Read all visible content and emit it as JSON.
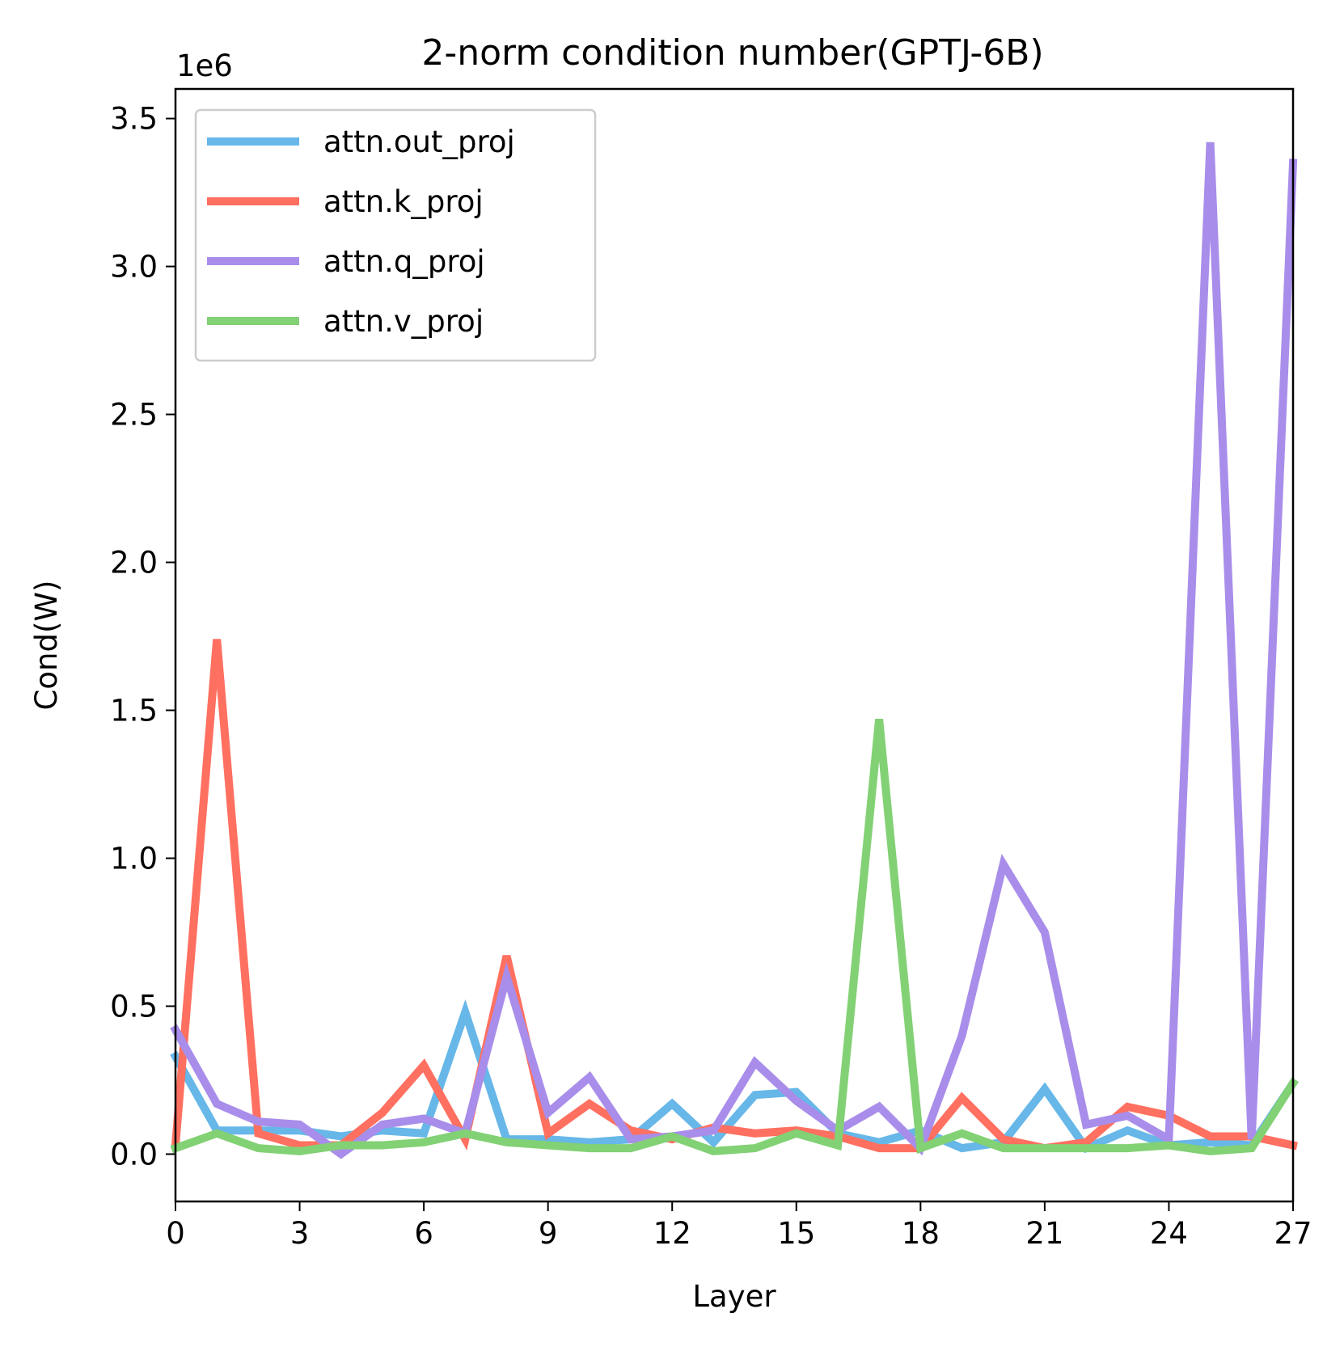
{
  "chart_data": {
    "type": "line",
    "title": "2-norm condition number(GPTJ-6B)",
    "xlabel": "Layer",
    "ylabel": "Cond(W)",
    "y_offset_label": "1e6",
    "xlim": [
      0,
      27
    ],
    "ylim": [
      -0.16,
      3.6
    ],
    "x_scale": 1,
    "y_scale": 1000000,
    "xticks": [
      0,
      3,
      6,
      9,
      12,
      15,
      18,
      21,
      24,
      27
    ],
    "xtick_labels": [
      "0",
      "3",
      "6",
      "9",
      "12",
      "15",
      "18",
      "21",
      "24",
      "27"
    ],
    "yticks": [
      0.0,
      0.5,
      1.0,
      1.5,
      2.0,
      2.5,
      3.0,
      3.5
    ],
    "ytick_labels": [
      "0.0",
      "0.5",
      "1.0",
      "1.5",
      "2.0",
      "2.5",
      "3.0",
      "3.5"
    ],
    "grid": false,
    "legend_position": "top-left",
    "x": [
      0,
      1,
      2,
      3,
      4,
      5,
      6,
      7,
      8,
      9,
      10,
      11,
      12,
      13,
      14,
      15,
      16,
      17,
      18,
      19,
      20,
      21,
      22,
      23,
      24,
      25,
      26,
      27
    ],
    "series": [
      {
        "name": "attn.out_proj",
        "color": "#67b7e8",
        "values": [
          0.33,
          0.08,
          0.08,
          0.08,
          0.06,
          0.08,
          0.07,
          0.48,
          0.05,
          0.05,
          0.04,
          0.05,
          0.17,
          0.04,
          0.2,
          0.21,
          0.07,
          0.04,
          0.08,
          0.02,
          0.04,
          0.22,
          0.02,
          0.08,
          0.03,
          0.04,
          0.03,
          0.24
        ]
      },
      {
        "name": "attn.k_proj",
        "color": "#ff7060",
        "values": [
          0.03,
          1.74,
          0.07,
          0.03,
          0.03,
          0.14,
          0.3,
          0.05,
          0.67,
          0.07,
          0.17,
          0.08,
          0.05,
          0.09,
          0.07,
          0.08,
          0.06,
          0.02,
          0.02,
          0.19,
          0.05,
          0.02,
          0.04,
          0.16,
          0.13,
          0.06,
          0.06,
          0.03
        ]
      },
      {
        "name": "attn.q_proj",
        "color": "#a98dea",
        "values": [
          0.42,
          0.17,
          0.11,
          0.1,
          0.0,
          0.1,
          0.12,
          0.07,
          0.6,
          0.14,
          0.26,
          0.05,
          0.06,
          0.08,
          0.31,
          0.18,
          0.08,
          0.16,
          0.02,
          0.4,
          0.98,
          0.75,
          0.1,
          0.13,
          0.05,
          3.42,
          0.05,
          3.35
        ]
      },
      {
        "name": "attn.v_proj",
        "color": "#82d174",
        "values": [
          0.02,
          0.07,
          0.02,
          0.01,
          0.03,
          0.03,
          0.04,
          0.07,
          0.04,
          0.03,
          0.02,
          0.02,
          0.06,
          0.01,
          0.02,
          0.07,
          0.03,
          1.47,
          0.02,
          0.07,
          0.02,
          0.02,
          0.02,
          0.02,
          0.03,
          0.01,
          0.02,
          0.24
        ]
      }
    ]
  }
}
